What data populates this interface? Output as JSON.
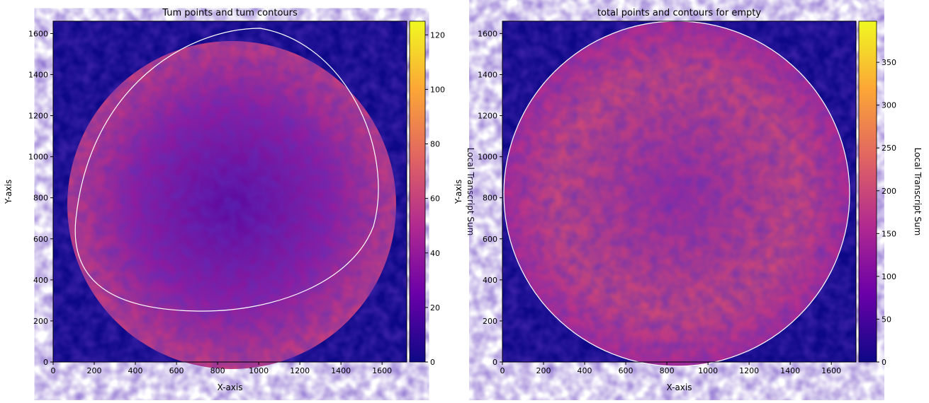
{
  "chart_data": [
    {
      "type": "heatmap",
      "title": "Tum points and tum contours",
      "x_label": "X-axis",
      "y_label": "Y-axis",
      "xlim": [
        0,
        1720
      ],
      "ylim": [
        0,
        1660
      ],
      "xticks": [
        0,
        200,
        400,
        600,
        800,
        1000,
        1200,
        1400,
        1600
      ],
      "yticks": [
        0,
        200,
        400,
        600,
        800,
        1000,
        1200,
        1400,
        1600
      ],
      "colormap": "plasma",
      "colorbar": {
        "label": "Local Transcript Sum",
        "clim": [
          0,
          125
        ],
        "ticks": [
          0,
          20,
          40,
          60,
          80,
          100,
          120
        ]
      }
    },
    {
      "type": "heatmap",
      "title": "total points and contours for empty",
      "x_label": "X-axis",
      "y_label": "Y-axis",
      "xlim": [
        0,
        1720
      ],
      "ylim": [
        0,
        1660
      ],
      "xticks": [
        0,
        200,
        400,
        600,
        800,
        1000,
        1200,
        1400,
        1600
      ],
      "yticks": [
        0,
        200,
        400,
        600,
        800,
        1000,
        1200,
        1400,
        1600
      ],
      "colormap": "plasma",
      "colorbar": {
        "label": "Local Transcript Sum",
        "clim": [
          0,
          398
        ],
        "ticks": [
          0,
          50,
          100,
          150,
          200,
          250,
          300,
          350
        ]
      }
    }
  ]
}
